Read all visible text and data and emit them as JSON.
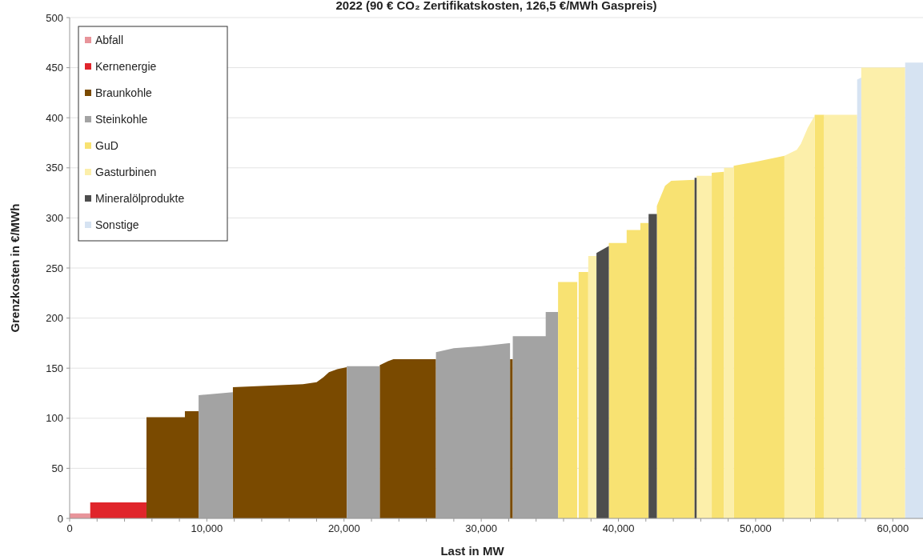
{
  "chart_data": {
    "type": "area",
    "title": "2022 (90 € CO₂ Zertifikatskosten, 126,5 €/MWh Gaspreis)",
    "xlabel": "Last in MW",
    "ylabel": "Grenzkosten in €/MWh",
    "xlim": [
      0,
      62200
    ],
    "xticks": [
      0,
      {
        "value": 2000,
        "label": null
      },
      {
        "value": 4000,
        "label": null
      },
      {
        "value": 6000,
        "label": null
      },
      {
        "value": 8000,
        "label": null
      },
      {
        "value": 10000,
        "label": "10,000"
      },
      {
        "value": 12000,
        "label": null
      },
      {
        "value": 14000,
        "label": null
      },
      {
        "value": 16000,
        "label": null
      },
      {
        "value": 18000,
        "label": null
      },
      {
        "value": 20000,
        "label": "20,000"
      },
      {
        "value": 22000,
        "label": null
      },
      {
        "value": 24000,
        "label": null
      },
      {
        "value": 26000,
        "label": null
      },
      {
        "value": 28000,
        "label": null
      },
      {
        "value": 30000,
        "label": "30,000"
      },
      {
        "value": 32000,
        "label": null
      },
      {
        "value": 34000,
        "label": null
      },
      {
        "value": 36000,
        "label": null
      },
      {
        "value": 38000,
        "label": null
      },
      {
        "value": 40000,
        "label": "40,000"
      },
      {
        "value": 42000,
        "label": null
      },
      {
        "value": 44000,
        "label": null
      },
      {
        "value": 46000,
        "label": null
      },
      {
        "value": 48000,
        "label": null
      },
      {
        "value": 50000,
        "label": "50,000"
      },
      {
        "value": 52000,
        "label": null
      },
      {
        "value": 54000,
        "label": null
      },
      {
        "value": 56000,
        "label": null
      },
      {
        "value": 58000,
        "label": null
      },
      {
        "value": 60000,
        "label": "60,000"
      }
    ],
    "ylim": [
      0,
      500
    ],
    "yticks": [
      0,
      50,
      100,
      150,
      200,
      250,
      300,
      350,
      400,
      450,
      500
    ],
    "grid": "y",
    "legend": "top left",
    "series": [
      {
        "name": "Abfall",
        "color": "#e8949a",
        "x": [
          0,
          1500
        ],
        "values": [
          5,
          5
        ]
      },
      {
        "name": "Kernenergie",
        "color": "#e0252b",
        "x": [
          1500,
          5600
        ],
        "values": [
          16,
          16
        ]
      },
      {
        "name": "Braunkohle",
        "color": "#7a4a00",
        "x": [
          5600,
          8400,
          8400,
          9400,
          9400,
          11900,
          11900,
          17000,
          18000,
          18500,
          18900,
          19500,
          20200,
          20200,
          22600,
          22600,
          23200,
          23600,
          26700,
          26700,
          32100,
          32100,
          32300
        ],
        "values": [
          101,
          101,
          107,
          107,
          0,
          0,
          131,
          134,
          136,
          141,
          146,
          149,
          151,
          0,
          0,
          153,
          157,
          159,
          159,
          0,
          0,
          159,
          159
        ]
      },
      {
        "name": "Steinkohle",
        "color": "#a3a3a3",
        "x": [
          9400,
          11900,
          11900,
          20200,
          20200,
          22600,
          22600,
          26700,
          26700,
          28000,
          30000,
          32000,
          32100,
          32100,
          32300,
          32300,
          34700,
          34700,
          35600
        ],
        "values": [
          123,
          126,
          0,
          0,
          152,
          152,
          0,
          0,
          166,
          170,
          172,
          175,
          175,
          0,
          0,
          182,
          182,
          206,
          206
        ]
      },
      {
        "name": "GuD",
        "color": "#f8e272",
        "x": [
          35600,
          37000,
          37000,
          37100,
          37100,
          37800,
          37800,
          39300,
          39300,
          40600,
          40600,
          41600,
          41600,
          42200,
          42200,
          42800,
          42800,
          43400,
          43850,
          45550,
          45550,
          46800,
          46800,
          47700,
          47700,
          48400,
          48400,
          50000,
          52100,
          52100,
          54300,
          54300,
          55000
        ],
        "values": [
          236,
          236,
          0,
          0,
          246,
          246,
          0,
          0,
          275,
          275,
          288,
          288,
          295,
          295,
          0,
          0,
          312,
          332,
          337,
          338,
          0,
          0,
          345,
          346,
          0,
          0,
          352,
          356,
          362,
          0,
          0,
          403,
          403
        ]
      },
      {
        "name": "Gasturbinen",
        "color": "#fcefaa",
        "x": [
          37800,
          38400,
          38400,
          45700,
          45700,
          46800,
          46800,
          47700,
          47700,
          48400,
          48400,
          52100,
          52100,
          53000,
          53300,
          53800,
          54300,
          54300,
          55000,
          55000,
          57400,
          57400,
          57700,
          57700,
          60900
        ],
        "values": [
          262,
          262,
          0,
          0,
          342,
          342,
          0,
          0,
          350,
          350,
          0,
          0,
          362,
          368,
          374,
          390,
          402,
          0,
          0,
          403,
          403,
          0,
          0,
          450,
          450
        ]
      },
      {
        "name": "Mineralölprodukte",
        "color": "#4d4d4d",
        "x": [
          38400,
          39300,
          39300,
          42200,
          42200,
          42800,
          42800,
          45550,
          45550,
          45700
        ],
        "values": [
          265,
          272,
          0,
          0,
          304,
          304,
          0,
          0,
          340,
          340
        ]
      },
      {
        "name": "Sonstige",
        "color": "#d6e3f2",
        "x": [
          57400,
          57700,
          57700,
          60900,
          60900,
          62200
        ],
        "values": [
          438,
          440,
          0,
          0,
          455,
          455
        ]
      }
    ]
  }
}
